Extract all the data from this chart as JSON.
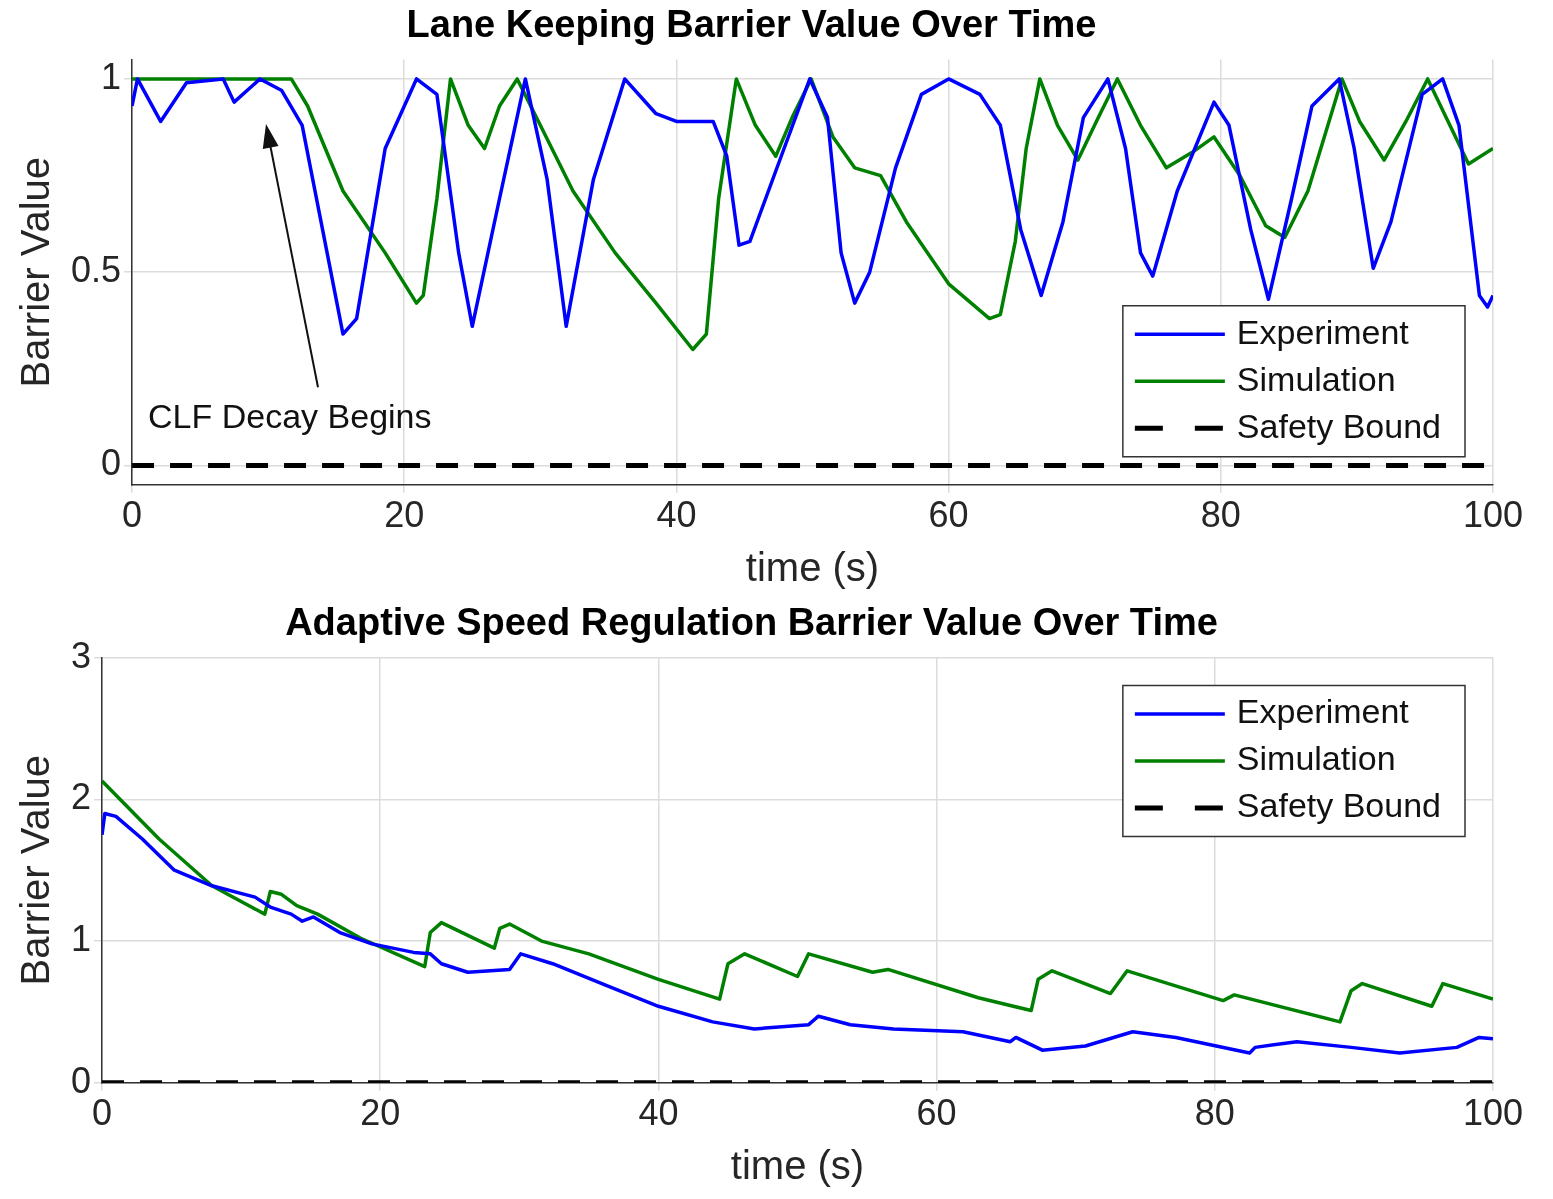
{
  "chart_data": [
    {
      "type": "line",
      "title": "Lane Keeping Barrier Value Over Time",
      "xlabel": "time (s)",
      "ylabel": "Barrier Value",
      "xlim": [
        0,
        100
      ],
      "xticks": [
        0,
        20,
        40,
        60,
        80,
        100
      ],
      "ylim": [
        -0.05,
        1.05
      ],
      "yticks": [
        0,
        0.5,
        1
      ],
      "grid": true,
      "legend": "bottom right",
      "annotations": [
        "CLF Decay Begins"
      ],
      "series": [
        {
          "name": "Experiment",
          "color": "#0000ff",
          "x": [
            0,
            0.4,
            2.1,
            4,
            6.7,
            7.5,
            9.4,
            11,
            12.5,
            14,
            15.5,
            16.5,
            18.6,
            20.9,
            22.4,
            24,
            25,
            27,
            28.9,
            30.5,
            31.9,
            33.9,
            36.2,
            38.5,
            40,
            42.7,
            43.7,
            44.6,
            45.4,
            47.7,
            49.8,
            51.1,
            52.1,
            53.1,
            54.2,
            56.1,
            58,
            60,
            62.3,
            63.8,
            65.3,
            66.8,
            68.4,
            69.9,
            71.7,
            73,
            74.1,
            75,
            76.8,
            79.5,
            80.6,
            82.2,
            83.5,
            85.2,
            86.7,
            88.7,
            89.8,
            91.2,
            92.5,
            94.8,
            96.3,
            97.5,
            99,
            99.6,
            100
          ],
          "values": [
            0.93,
            1.0,
            0.89,
            0.99,
            1.0,
            0.94,
            1.0,
            0.97,
            0.88,
            0.61,
            0.34,
            0.38,
            0.82,
            1.0,
            0.96,
            0.55,
            0.36,
            0.69,
            1.0,
            0.74,
            0.36,
            0.74,
            1.0,
            0.91,
            0.89,
            0.89,
            0.8,
            0.57,
            0.58,
            0.8,
            1.0,
            0.9,
            0.55,
            0.42,
            0.5,
            0.77,
            0.96,
            1.0,
            0.96,
            0.88,
            0.61,
            0.44,
            0.63,
            0.9,
            1.0,
            0.82,
            0.55,
            0.49,
            0.71,
            0.94,
            0.88,
            0.61,
            0.43,
            0.69,
            0.93,
            1.0,
            0.82,
            0.51,
            0.63,
            0.96,
            1.0,
            0.88,
            0.44,
            0.41,
            0.44
          ]
        },
        {
          "name": "Simulation",
          "color": "#008000",
          "x": [
            0,
            11.7,
            12.9,
            15.5,
            18.6,
            20.9,
            21.4,
            22.4,
            23.4,
            24.7,
            25.9,
            27,
            28.3,
            30,
            32.4,
            35.5,
            38.5,
            41.2,
            42.2,
            43.1,
            44.4,
            45.8,
            47.3,
            48.5,
            49.9,
            51.5,
            53.1,
            55,
            56.9,
            60,
            63,
            63.8,
            64.9,
            65.7,
            66.7,
            68,
            69.5,
            71,
            72.4,
            74.1,
            76,
            77.9,
            79.5,
            81.4,
            83.3,
            84.7,
            86.4,
            88.9,
            90.2,
            92,
            93.6,
            95.2,
            96.7,
            98.2,
            100
          ],
          "values": [
            1.0,
            1.0,
            0.93,
            0.71,
            0.55,
            0.42,
            0.44,
            0.69,
            1.0,
            0.88,
            0.82,
            0.93,
            1.0,
            0.88,
            0.71,
            0.55,
            0.42,
            0.3,
            0.34,
            0.69,
            1.0,
            0.88,
            0.8,
            0.9,
            1.0,
            0.85,
            0.77,
            0.75,
            0.63,
            0.47,
            0.38,
            0.39,
            0.58,
            0.82,
            1.0,
            0.88,
            0.79,
            0.9,
            1.0,
            0.88,
            0.77,
            0.81,
            0.85,
            0.75,
            0.62,
            0.59,
            0.71,
            1.0,
            0.89,
            0.79,
            0.89,
            1.0,
            0.89,
            0.78,
            0.82
          ]
        },
        {
          "name": "Safety Bound",
          "color": "#000000",
          "line_style": "dashed",
          "x": [
            0,
            100
          ],
          "values": [
            0,
            0
          ]
        }
      ]
    },
    {
      "type": "line",
      "title": "Adaptive Speed Regulation Barrier Value Over Time",
      "xlabel": "time (s)",
      "ylabel": "Barrier Value",
      "xlim": [
        0,
        100
      ],
      "xticks": [
        0,
        20,
        40,
        60,
        80,
        100
      ],
      "ylim": [
        0,
        3
      ],
      "yticks": [
        0,
        1,
        2,
        3
      ],
      "grid": true,
      "legend": "top right",
      "series": [
        {
          "name": "Experiment",
          "color": "#0000ff",
          "x": [
            0,
            0.2,
            1,
            2.9,
            5.2,
            7.9,
            11,
            12.1,
            13.6,
            14.4,
            15.2,
            17.1,
            19.4,
            22.4,
            23.6,
            24.4,
            26.3,
            29.3,
            30.1,
            32.4,
            36.2,
            40,
            43.9,
            46.9,
            50.8,
            51.5,
            53.8,
            56.9,
            61.9,
            65.3,
            65.7,
            67.6,
            70.7,
            74.1,
            77.2,
            82.5,
            82.9,
            85.9,
            89.8,
            93.3,
            97.4,
            99,
            100
          ],
          "values": [
            1.75,
            1.9,
            1.88,
            1.72,
            1.5,
            1.39,
            1.31,
            1.24,
            1.19,
            1.14,
            1.17,
            1.06,
            0.98,
            0.92,
            0.91,
            0.84,
            0.78,
            0.8,
            0.91,
            0.84,
            0.69,
            0.54,
            0.43,
            0.38,
            0.41,
            0.47,
            0.41,
            0.38,
            0.36,
            0.29,
            0.32,
            0.23,
            0.26,
            0.36,
            0.32,
            0.21,
            0.25,
            0.29,
            0.25,
            0.21,
            0.25,
            0.32,
            0.31
          ]
        },
        {
          "name": "Simulation",
          "color": "#008000",
          "x": [
            0,
            4.1,
            7.9,
            11.7,
            12.1,
            12.9,
            14,
            15.5,
            18.6,
            23.2,
            23.6,
            24.4,
            28.2,
            28.6,
            29.3,
            31.6,
            35,
            40,
            44.4,
            45,
            46.2,
            50,
            50.8,
            55.4,
            56.5,
            63,
            66.8,
            67.3,
            68.3,
            72.5,
            73.7,
            80.6,
            81.4,
            89,
            89.8,
            90.6,
            95.6,
            96.4,
            100
          ],
          "values": [
            2.13,
            1.72,
            1.39,
            1.19,
            1.35,
            1.33,
            1.25,
            1.19,
            1.02,
            0.82,
            1.06,
            1.13,
            0.95,
            1.09,
            1.12,
            1.0,
            0.91,
            0.73,
            0.59,
            0.84,
            0.91,
            0.75,
            0.91,
            0.78,
            0.8,
            0.6,
            0.51,
            0.73,
            0.79,
            0.63,
            0.79,
            0.58,
            0.62,
            0.43,
            0.65,
            0.7,
            0.54,
            0.7,
            0.59
          ]
        },
        {
          "name": "Safety Bound",
          "color": "#000000",
          "line_style": "dashed",
          "x": [
            0,
            100
          ],
          "values": [
            0,
            0
          ]
        }
      ]
    }
  ]
}
